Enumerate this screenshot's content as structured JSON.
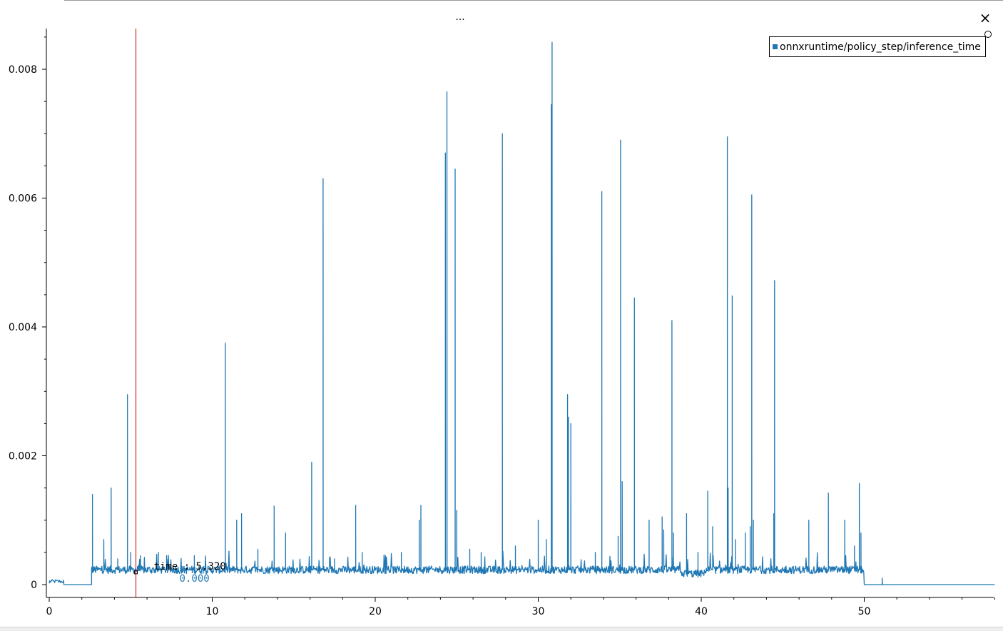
{
  "window": {
    "title": "...",
    "close_icon": "×"
  },
  "legend": {
    "label": "onnxruntime/policy_step/inference_time",
    "color": "#1f77b4"
  },
  "tracker": {
    "time_text": "time : 5.320",
    "value_text": "0.000",
    "x": 5.32,
    "color": "#cc0000"
  },
  "chart_data": {
    "type": "line",
    "xlim": [
      0,
      58
    ],
    "ylim": [
      -0.00015,
      0.0086
    ],
    "xticks": [
      0,
      10,
      20,
      30,
      40,
      50
    ],
    "xtick_labels": [
      "0",
      "10",
      "20",
      "30",
      "40",
      "50"
    ],
    "yticks": [
      0,
      0.002,
      0.004,
      0.006,
      0.008
    ],
    "ytick_labels": [
      "0",
      "0.002",
      "0.004",
      "0.006",
      "0.008"
    ],
    "grid": false,
    "legend_position": "top-right",
    "series": [
      {
        "name": "onnxruntime/policy_step/inference_time",
        "color": "#1f77b4",
        "baseline_start": 2.6,
        "baseline_end": 50.0,
        "baseline_level": 0.00023,
        "spikes": [
          [
            2.65,
            0.0014
          ],
          [
            3.35,
            0.0007
          ],
          [
            3.8,
            0.0015
          ],
          [
            4.2,
            0.0004
          ],
          [
            4.8,
            0.00295
          ],
          [
            5.0,
            0.0005
          ],
          [
            5.6,
            0.00045
          ],
          [
            6.7,
            0.0005
          ],
          [
            7.2,
            0.00045
          ],
          [
            8.9,
            0.00045
          ],
          [
            10.8,
            0.00375
          ],
          [
            11.5,
            0.001
          ],
          [
            11.8,
            0.0011
          ],
          [
            12.8,
            0.00055
          ],
          [
            13.8,
            0.00122
          ],
          [
            14.5,
            0.0008
          ],
          [
            16.1,
            0.0019
          ],
          [
            16.8,
            0.0063
          ],
          [
            17.5,
            0.0004
          ],
          [
            18.8,
            0.00123
          ],
          [
            19.2,
            0.0005
          ],
          [
            21.6,
            0.0005
          ],
          [
            22.7,
            0.001
          ],
          [
            22.8,
            0.00123
          ],
          [
            24.3,
            0.0067
          ],
          [
            24.4,
            0.00765
          ],
          [
            24.9,
            0.00645
          ],
          [
            25.0,
            0.00115
          ],
          [
            25.8,
            0.00055
          ],
          [
            26.5,
            0.0005
          ],
          [
            27.8,
            0.007
          ],
          [
            28.6,
            0.0006
          ],
          [
            30.0,
            0.001
          ],
          [
            30.5,
            0.0007
          ],
          [
            30.8,
            0.00745
          ],
          [
            30.85,
            0.00842
          ],
          [
            31.8,
            0.00295
          ],
          [
            31.85,
            0.0026
          ],
          [
            32.0,
            0.0025
          ],
          [
            33.5,
            0.0005
          ],
          [
            33.9,
            0.0061
          ],
          [
            34.9,
            0.00075
          ],
          [
            35.05,
            0.0069
          ],
          [
            35.15,
            0.0016
          ],
          [
            35.9,
            0.00445
          ],
          [
            36.8,
            0.001
          ],
          [
            37.6,
            0.00105
          ],
          [
            37.7,
            0.00085
          ],
          [
            38.2,
            0.0041
          ],
          [
            38.3,
            0.0008
          ],
          [
            39.1,
            0.0011
          ],
          [
            39.8,
            0.0005
          ],
          [
            40.4,
            0.00145
          ],
          [
            40.7,
            0.0009
          ],
          [
            41.6,
            0.00695
          ],
          [
            41.65,
            0.0015
          ],
          [
            41.9,
            0.00448
          ],
          [
            42.1,
            0.0007
          ],
          [
            42.7,
            0.0008
          ],
          [
            43.0,
            0.0009
          ],
          [
            43.1,
            0.00605
          ],
          [
            43.2,
            0.001
          ],
          [
            44.5,
            0.00472
          ],
          [
            44.45,
            0.0011
          ],
          [
            46.6,
            0.001
          ],
          [
            47.8,
            0.00142
          ],
          [
            48.8,
            0.001
          ],
          [
            49.4,
            0.0006
          ],
          [
            49.7,
            0.00157
          ],
          [
            49.8,
            0.0008
          ]
        ]
      }
    ]
  }
}
